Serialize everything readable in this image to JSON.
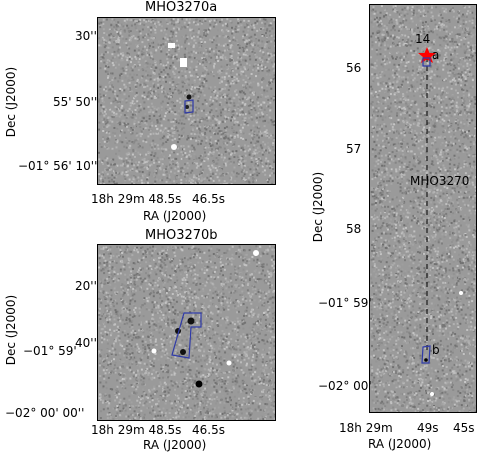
{
  "panels": {
    "a": {
      "title": "MHO3270a",
      "dec_ticks": [
        "30''",
        "55' 50''",
        "−01° 56' 10''"
      ],
      "ra_ticks": [
        "18h 29m 48.5s",
        "46.5s"
      ],
      "xlabel": "RA (J2000)",
      "ylabel": "Dec (J2000)"
    },
    "b": {
      "title": "MHO3270b",
      "dec_ticks": [
        "20''",
        "40''",
        "−01° 59'",
        "−02° 00' 00''"
      ],
      "ra_ticks": [
        "18h 29m 48.5s",
        "46.5s"
      ],
      "xlabel": "RA (J2000)",
      "ylabel": "Dec (J2000)"
    },
    "overview": {
      "dec_ticks": [
        "56",
        "57",
        "58",
        "−01° 59'",
        "−02° 00'"
      ],
      "ra_ticks": [
        "18h 29m",
        "49s",
        "45s"
      ],
      "xlabel": "RA (J2000)",
      "ylabel": "Dec (J2000)",
      "marker_label": "14",
      "outflow_label": "MHO3270",
      "knot_a": "a",
      "knot_b": "b"
    }
  },
  "colors": {
    "outline": "#2f3aa8",
    "star": "#ff0000"
  }
}
